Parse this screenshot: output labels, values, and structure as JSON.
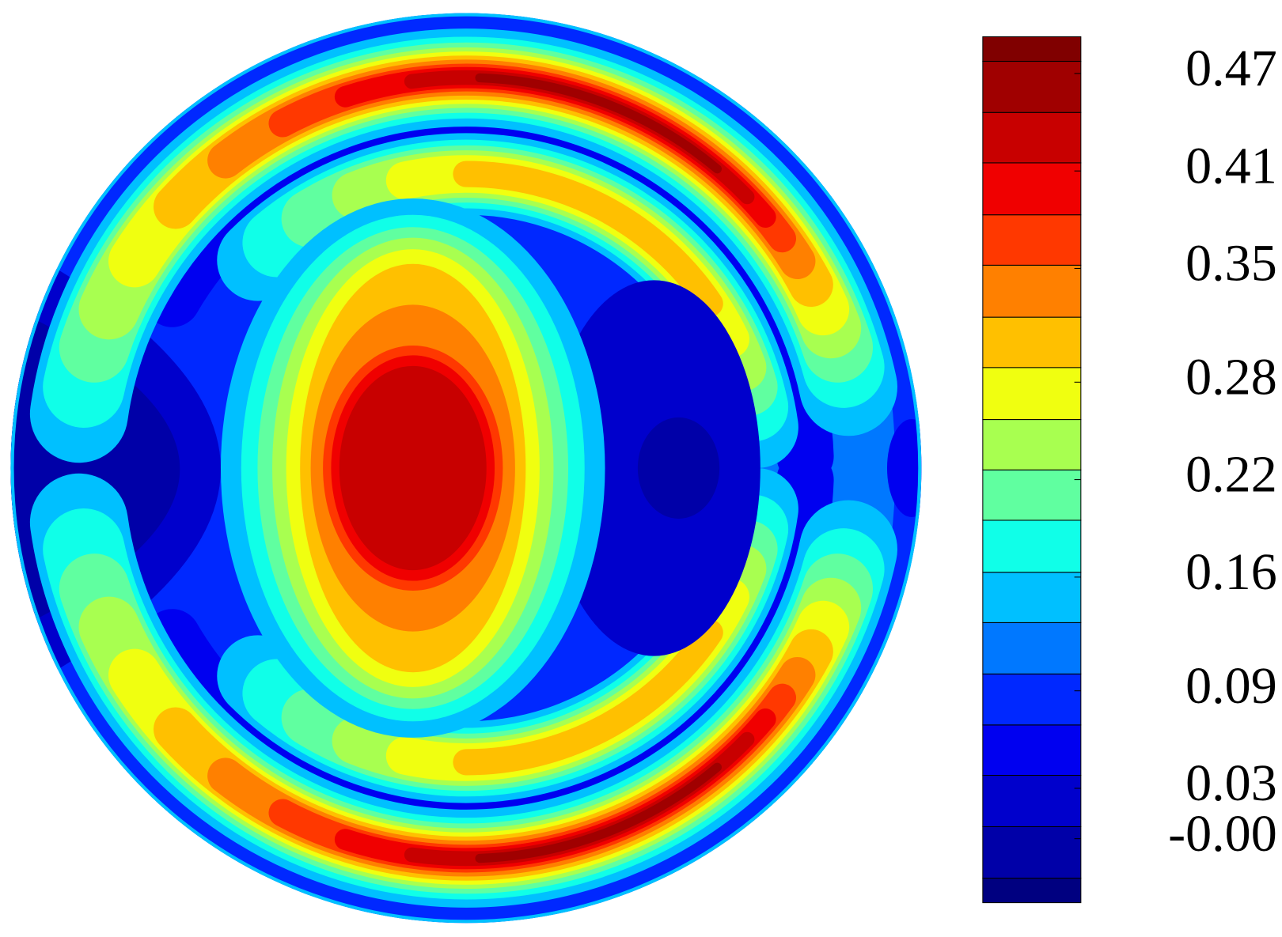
{
  "chart_data": {
    "type": "contour",
    "levels": [
      -0.0404,
      -0.0253,
      0.0064,
      0.038,
      0.069,
      0.1004,
      0.132,
      0.163,
      0.195,
      0.226,
      0.257,
      0.289,
      0.32,
      0.352,
      0.383,
      0.415,
      0.446,
      0.4775,
      0.4926
    ],
    "colors": [
      "#000080",
      "#0000a8",
      "#0000cc",
      "#0000f0",
      "#0028ff",
      "#0078ff",
      "#00c0ff",
      "#10ffe8",
      "#60ffa0",
      "#a8ff50",
      "#f0ff10",
      "#ffc000",
      "#ff8000",
      "#ff3800",
      "#f00000",
      "#c80000",
      "#a00000",
      "#800000"
    ],
    "colorbar_ticks": [
      0.47,
      0.41,
      0.35,
      0.28,
      0.22,
      0.16,
      0.09,
      0.03,
      {
        "value": -0.001,
        "label": "-0.00"
      }
    ]
  }
}
